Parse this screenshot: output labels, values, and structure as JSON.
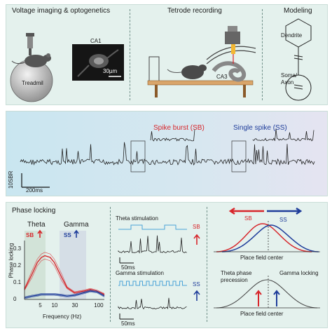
{
  "top": {
    "section1_title": "Voltage imaging & optogenetics",
    "section2_title": "Tetrode recording",
    "section3_title": "Modeling",
    "ca1_label": "CA1",
    "scalebar_label": "30µm",
    "treadmill_label": "Treadmil",
    "ca3_label": "CA3",
    "dendrite_label": "Dendrite",
    "soma_label": "Soma/",
    "axon_label": "Axon"
  },
  "mid": {
    "spike_burst_label": "Spike burst (SB)",
    "single_spike_label": "Single spike (SS)",
    "y_scale_label": "10SBR",
    "time_scale_label": "200ms"
  },
  "bottom": {
    "title": "Phase locking",
    "theta_label": "Theta",
    "gamma_label": "Gamma",
    "sb_label": "SB",
    "ss_label": "SS",
    "ylabel": "Phase locking",
    "xlabel": "Frequency (Hz)",
    "y_ticks": [
      "0.3",
      "0.2",
      "0.1",
      "0"
    ],
    "x_ticks": [
      "5",
      "10",
      "30",
      "100"
    ],
    "theta_stim_label": "Theta stimulation",
    "gamma_stim_label": "Gamma stimulation",
    "stim_scale_1": "50ms",
    "stim_scale_2": "50ms",
    "stim_sb_label": "SB",
    "stim_ss_label": "SS",
    "place_sb_label": "SB",
    "place_ss_label": "SS",
    "place_field_label_1": "Place field center",
    "theta_precession_label_1": "Theta phase",
    "theta_precession_label_2": "precession",
    "gamma_locking_label": "Gamma locking",
    "place_field_label_2": "Place field center"
  },
  "chart_data": {
    "type": "line",
    "xlabel": "Frequency (Hz)",
    "ylabel": "Phase locking",
    "xscale": "log",
    "xlim": [
      2,
      150
    ],
    "ylim": [
      0,
      0.35
    ],
    "series": [
      {
        "name": "SB",
        "color": "#d7262b",
        "x": [
          2,
          3,
          4,
          5,
          6,
          8,
          10,
          15,
          20,
          30,
          50,
          70,
          100,
          150
        ],
        "y": [
          0.06,
          0.15,
          0.22,
          0.25,
          0.26,
          0.25,
          0.22,
          0.13,
          0.07,
          0.04,
          0.05,
          0.06,
          0.05,
          0.03
        ]
      },
      {
        "name": "SS",
        "color": "#1f3d9a",
        "x": [
          2,
          3,
          4,
          5,
          6,
          8,
          10,
          15,
          20,
          30,
          50,
          70,
          100,
          150
        ],
        "y": [
          0.01,
          0.02,
          0.025,
          0.03,
          0.03,
          0.03,
          0.03,
          0.025,
          0.02,
          0.025,
          0.04,
          0.05,
          0.045,
          0.02
        ]
      }
    ]
  }
}
